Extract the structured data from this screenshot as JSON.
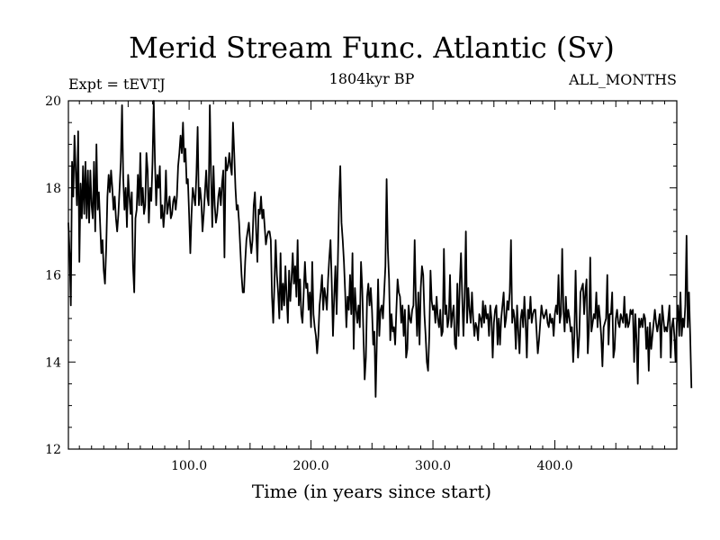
{
  "chart_data": {
    "type": "line",
    "title": "Merid Stream Func. Atlantic (Sv)",
    "subtitle": "1804kyr BP",
    "experiment_label": "Expt = tEVTJ",
    "period_label": "ALL_MONTHS",
    "xlabel": "Time (in years since start)",
    "ylabel": "",
    "xlim": [
      1,
      500
    ],
    "ylim": [
      12,
      20
    ],
    "x_ticks": [
      100,
      200,
      300,
      400
    ],
    "x_tick_labels": [
      "100.0",
      "200.0",
      "300.0",
      "400.0"
    ],
    "y_ticks": [
      12,
      14,
      16,
      18,
      20
    ],
    "y_tick_labels": [
      "12",
      "14",
      "16",
      "18",
      "20"
    ],
    "series": [
      {
        "name": "Merid Stream Func. Atlantic",
        "color": "#000000",
        "x_start": 1,
        "x_step": 1,
        "values": [
          17.2,
          16.5,
          15.3,
          18.6,
          17.8,
          19.2,
          18.4,
          17.6,
          19.3,
          16.3,
          18.1,
          17.3,
          18.5,
          17.4,
          18.6,
          17.3,
          18.4,
          17.2,
          18.4,
          17.6,
          17.3,
          18.6,
          17.0,
          19.0,
          17.5,
          17.9,
          17.2,
          16.5,
          16.8,
          16.1,
          15.8,
          16.6,
          17.8,
          18.3,
          17.9,
          18.4,
          18.0,
          17.5,
          17.8,
          17.3,
          17.0,
          17.4,
          18.0,
          18.6,
          19.9,
          18.2,
          17.5,
          18.0,
          17.1,
          18.3,
          17.8,
          17.4,
          17.9,
          16.2,
          15.6,
          17.3,
          17.5,
          18.3,
          17.6,
          18.8,
          17.6,
          18.0,
          17.4,
          17.6,
          18.8,
          18.4,
          17.2,
          18.0,
          17.7,
          18.6,
          20.0,
          18.6,
          17.6,
          18.3,
          18.0,
          18.5,
          17.3,
          17.6,
          17.1,
          17.5,
          18.4,
          17.4,
          17.6,
          17.8,
          17.3,
          17.4,
          17.7,
          17.8,
          17.5,
          17.8,
          18.5,
          18.8,
          19.2,
          18.8,
          19.5,
          18.6,
          18.9,
          18.1,
          18.2,
          17.4,
          16.5,
          17.4,
          18.0,
          17.8,
          17.6,
          18.3,
          19.4,
          17.6,
          18.0,
          17.7,
          17.0,
          17.4,
          17.9,
          18.4,
          17.8,
          17.6,
          19.9,
          18.3,
          17.1,
          18.5,
          17.6,
          17.2,
          17.4,
          17.8,
          18.0,
          17.6,
          18.1,
          18.4,
          16.4,
          18.7,
          18.4,
          18.5,
          18.8,
          18.5,
          18.3,
          19.5,
          18.8,
          18.0,
          17.5,
          17.6,
          17.2,
          16.6,
          16.0,
          15.6,
          15.6,
          16.3,
          16.8,
          17.0,
          17.2,
          16.8,
          16.5,
          16.8,
          17.6,
          17.9,
          17.0,
          16.3,
          17.5,
          17.4,
          17.8,
          17.3,
          17.5,
          17.1,
          16.7,
          16.9,
          17.0,
          17.0,
          16.8,
          15.5,
          14.9,
          15.8,
          16.8,
          16.0,
          15.6,
          15.0,
          16.5,
          15.2,
          15.8,
          15.3,
          16.2,
          15.5,
          14.9,
          16.1,
          15.4,
          15.9,
          16.5,
          15.8,
          16.2,
          15.5,
          16.8,
          15.3,
          15.9,
          15.1,
          14.9,
          15.6,
          16.3,
          15.7,
          15.8,
          15.2,
          15.6,
          14.8,
          16.3,
          15.1,
          14.8,
          14.6,
          14.2,
          14.6,
          15.3,
          15.6,
          16.0,
          15.2,
          15.7,
          15.5,
          15.2,
          15.9,
          16.4,
          16.8,
          15.8,
          14.6,
          15.5,
          16.2,
          15.1,
          16.3,
          17.7,
          18.5,
          17.2,
          16.8,
          16.3,
          15.6,
          14.8,
          15.5,
          15.2,
          16.0,
          15.1,
          16.5,
          14.3,
          15.7,
          15.2,
          14.9,
          15.3,
          14.8,
          16.3,
          15.7,
          14.6,
          13.6,
          14.1,
          15.5,
          15.8,
          15.3,
          15.7,
          15.2,
          14.4,
          14.7,
          13.2,
          14.5,
          15.9,
          14.6,
          15.2,
          15.3,
          15.0,
          15.6,
          16.2,
          18.2,
          16.6,
          15.9,
          14.5,
          15.1,
          14.7,
          14.8,
          14.4,
          15.2,
          15.9,
          15.6,
          15.5,
          14.9,
          15.3,
          14.6,
          15.2,
          14.1,
          14.3,
          15.3,
          15.0,
          14.9,
          15.2,
          15.3,
          16.8,
          15.4,
          14.6,
          15.6,
          14.4,
          15.7,
          16.2,
          16.0,
          15.1,
          14.6,
          14.0,
          13.8,
          14.6,
          16.1,
          15.4,
          15.2,
          15.3,
          14.9,
          15.5,
          15.0,
          14.8,
          15.2,
          14.6,
          14.7,
          16.6,
          15.1,
          15.3,
          14.8,
          15.0,
          16.0,
          14.8,
          15.1,
          15.3,
          14.4,
          14.3,
          15.8,
          14.6,
          15.8,
          16.5,
          15.5,
          14.6,
          15.5,
          17.0,
          14.9,
          15.7,
          15.2,
          14.9,
          15.6,
          15.0,
          14.6,
          14.9,
          14.8,
          14.5,
          15.1,
          15.0,
          14.8,
          15.4,
          14.9,
          15.3,
          15.0,
          15.1,
          14.6,
          15.3,
          15.0,
          14.1,
          14.9,
          15.2,
          15.3,
          14.4,
          15.0,
          14.4,
          15.0,
          15.3,
          15.6,
          14.8,
          15.0,
          15.4,
          15.2,
          15.6,
          16.8,
          14.9,
          15.2,
          15.0,
          14.3,
          15.3,
          14.7,
          14.2,
          15.0,
          15.2,
          14.8,
          15.5,
          14.9,
          14.1,
          15.2,
          15.0,
          15.5,
          14.9,
          15.1,
          15.2,
          15.2,
          14.7,
          14.2,
          14.5,
          14.9,
          15.3,
          15.1,
          15.0,
          15.1,
          15.2,
          14.9,
          14.8,
          15.1,
          14.9,
          15.0,
          14.6,
          15.1,
          15.3,
          15.1,
          16.0,
          14.9,
          15.1,
          16.6,
          15.2,
          14.7,
          15.5,
          14.9,
          15.2,
          15.0,
          14.7,
          14.8,
          14.0,
          14.6,
          16.1,
          14.8,
          14.1,
          14.6,
          15.6,
          15.7,
          15.8,
          15.1,
          15.6,
          15.9,
          14.2,
          14.8,
          16.4,
          14.7,
          14.9,
          15.1,
          15.0,
          15.6,
          14.8,
          15.3,
          15.0,
          14.6,
          13.9,
          14.8,
          14.9,
          15.0,
          16.0,
          14.4,
          15.1,
          15.1,
          15.6,
          14.1,
          14.3,
          15.0,
          15.2,
          14.9,
          14.8,
          15.1,
          15.0,
          14.9,
          15.5,
          14.8,
          15.1,
          14.8,
          14.9,
          15.2,
          15.1,
          15.2,
          14.0,
          15.1,
          14.5,
          13.5,
          15.0,
          14.8,
          15.0,
          14.8,
          15.1,
          15.0,
          14.3,
          14.8,
          13.8,
          14.9,
          14.3,
          14.6,
          14.9,
          15.2,
          14.9,
          14.7,
          14.9,
          15.1,
          14.1,
          15.3,
          15.0,
          14.7,
          14.8,
          14.7,
          15.0,
          15.3,
          14.1,
          14.8,
          15.0,
          14.6,
          14.0,
          14.9,
          15.3,
          14.6,
          15.6,
          14.6,
          15.0,
          14.8,
          15.3,
          16.9,
          14.8,
          15.6,
          14.6,
          13.4
        ]
      }
    ]
  }
}
